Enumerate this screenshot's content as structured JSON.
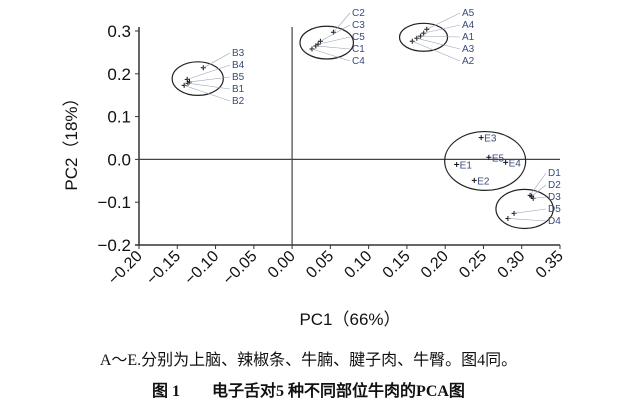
{
  "chart_data": {
    "type": "scatter",
    "xlabel": "PC1（66%）",
    "ylabel": "PC2（18%）",
    "xlim": [
      -0.2,
      0.35
    ],
    "ylim": [
      -0.2,
      0.3
    ],
    "xticks": [
      "-0.20",
      "-0.15",
      "-0.10",
      "-0.05",
      "0.00",
      "0.05",
      "0.10",
      "0.15",
      "0.20",
      "0.25",
      "0.30",
      "0.35"
    ],
    "yticks": [
      "0.3",
      "0.2",
      "0.1",
      "0.0",
      "-0.1",
      "-0.2"
    ],
    "grid": false,
    "zero_lines": true,
    "points": [
      {
        "label": "A1",
        "x": 0.168,
        "y": 0.288
      },
      {
        "label": "A2",
        "x": 0.157,
        "y": 0.276
      },
      {
        "label": "A3",
        "x": 0.163,
        "y": 0.283
      },
      {
        "label": "A4",
        "x": 0.172,
        "y": 0.295
      },
      {
        "label": "A5",
        "x": 0.176,
        "y": 0.304
      },
      {
        "label": "B1",
        "x": -0.136,
        "y": 0.178
      },
      {
        "label": "B2",
        "x": -0.141,
        "y": 0.173
      },
      {
        "label": "B3",
        "x": -0.116,
        "y": 0.214
      },
      {
        "label": "B4",
        "x": -0.137,
        "y": 0.187
      },
      {
        "label": "B5",
        "x": -0.134,
        "y": 0.181
      },
      {
        "label": "C1",
        "x": 0.031,
        "y": 0.265
      },
      {
        "label": "C2",
        "x": 0.054,
        "y": 0.297
      },
      {
        "label": "C3",
        "x": 0.037,
        "y": 0.276
      },
      {
        "label": "C4",
        "x": 0.026,
        "y": 0.258
      },
      {
        "label": "C5",
        "x": 0.034,
        "y": 0.269
      },
      {
        "label": "D1",
        "x": 0.311,
        "y": -0.084
      },
      {
        "label": "D2",
        "x": 0.313,
        "y": -0.086
      },
      {
        "label": "D3",
        "x": 0.315,
        "y": -0.091
      },
      {
        "label": "D4",
        "x": 0.282,
        "y": -0.138
      },
      {
        "label": "D5",
        "x": 0.29,
        "y": -0.126
      },
      {
        "label": "E1",
        "x": 0.215,
        "y": -0.012
      },
      {
        "label": "E2",
        "x": 0.238,
        "y": -0.049
      },
      {
        "label": "E3",
        "x": 0.247,
        "y": 0.051
      },
      {
        "label": "E4",
        "x": 0.279,
        "y": -0.007
      },
      {
        "label": "E5",
        "x": 0.257,
        "y": 0.005
      }
    ],
    "groups": [
      "A",
      "B",
      "C",
      "D",
      "E"
    ],
    "label_color": "#3a4a7a"
  },
  "caption": {
    "note": "A～E.分别为上脑、辣椒条、牛腩、腱子肉、牛臀。图4同。",
    "title": "图 1　　电子舌对5 种不同部位牛肉的PCA图"
  }
}
